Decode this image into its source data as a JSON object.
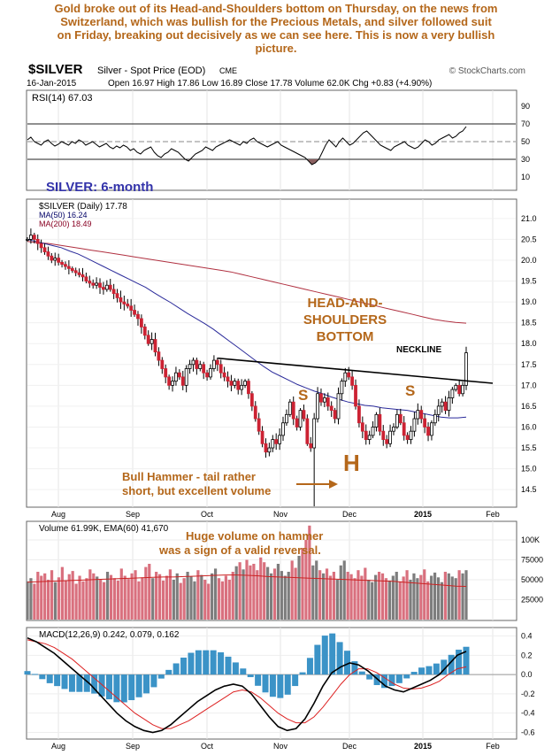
{
  "caption": [
    "Gold broke out of its Head-and-Shoulders bottom on Thursday, on the news from",
    "Switzerland, which was bullish for the Precious Metals, and silver followed suit",
    "on Friday, breaking out decisively as we can see here. This is now a very bullish",
    "picture."
  ],
  "header": {
    "symbol": "$SILVER",
    "description": "Silver - Spot Price (EOD)",
    "exchange": "CME",
    "watermark": "© StockCharts.com",
    "date": "16-Jan-2015",
    "quote": "Open 16.97  High 17.86  Low 16.89  Close 17.78  Volume 62.0K  Chg +0.83 (+4.90%)"
  },
  "chart_data": {
    "type": "candlestick",
    "x_months": [
      "Aug",
      "Sep",
      "Oct",
      "Nov",
      "Dec",
      "2015",
      "Feb"
    ],
    "rsi": {
      "label": "RSI(14) 67.03",
      "ticks": [
        "90",
        "70",
        "50",
        "30",
        "10"
      ],
      "levels": [
        70,
        50,
        30
      ],
      "ylim": [
        0,
        100
      ],
      "values": [
        52,
        55,
        50,
        48,
        46,
        50,
        52,
        48,
        45,
        47,
        50,
        48,
        46,
        50,
        48,
        52,
        50,
        46,
        48,
        50,
        47,
        44,
        46,
        48,
        44,
        42,
        45,
        43,
        46,
        44,
        40,
        42,
        38,
        36,
        40,
        42,
        44,
        38,
        34,
        32,
        36,
        38,
        42,
        40,
        38,
        34,
        30,
        28,
        32,
        36,
        38,
        40,
        44,
        42,
        40,
        44,
        46,
        48,
        50,
        52,
        50,
        48,
        46,
        50,
        48,
        52,
        54,
        50,
        48,
        46,
        44,
        46,
        48,
        50,
        46,
        44,
        42,
        40,
        38,
        36,
        34,
        32,
        28,
        24,
        26,
        30,
        38,
        46,
        52,
        48,
        44,
        50,
        54,
        50,
        46,
        48,
        52,
        56,
        60,
        62,
        58,
        54,
        50,
        46,
        44,
        42,
        40,
        44,
        46,
        48,
        50,
        46,
        44,
        42,
        44,
        48,
        52,
        50,
        46,
        48,
        52,
        54,
        56,
        58,
        54,
        56,
        60,
        62,
        67
      ]
    },
    "price": {
      "label": "$SILVER (Daily) 17.78",
      "ma50_label": "MA(50) 16.24",
      "ma200_label": "MA(200) 18.49",
      "title": "SILVER: 6-month",
      "ticks": [
        21.0,
        20.5,
        20.0,
        19.5,
        19.0,
        18.5,
        18.0,
        17.5,
        17.0,
        16.5,
        16.0,
        15.5,
        15.0,
        14.5
      ],
      "ylim": [
        14.1,
        21.4
      ],
      "close": [
        20.5,
        20.6,
        20.5,
        20.4,
        20.3,
        20.2,
        20.1,
        20.0,
        20.05,
        19.95,
        19.9,
        19.85,
        19.8,
        19.75,
        19.7,
        19.65,
        19.6,
        19.5,
        19.45,
        19.4,
        19.45,
        19.35,
        19.3,
        19.4,
        19.3,
        19.2,
        19.1,
        19.0,
        18.95,
        18.9,
        18.8,
        18.7,
        18.6,
        18.4,
        18.2,
        18.0,
        18.1,
        17.8,
        17.6,
        17.4,
        17.2,
        17.0,
        17.1,
        17.3,
        17.2,
        17.0,
        17.4,
        17.5,
        17.6,
        17.4,
        17.5,
        17.3,
        17.2,
        17.4,
        17.6,
        17.5,
        17.3,
        17.2,
        17.1,
        17.0,
        17.1,
        16.9,
        17.0,
        17.1,
        16.8,
        16.5,
        16.2,
        15.9,
        15.6,
        15.4,
        15.5,
        15.7,
        15.6,
        15.8,
        16.1,
        16.3,
        16.6,
        16.2,
        16.0,
        16.4,
        16.2,
        15.6,
        15.5,
        16.2,
        16.8,
        16.6,
        16.7,
        16.5,
        16.4,
        16.2,
        16.8,
        17.1,
        17.3,
        17.2,
        17.0,
        16.5,
        16.1,
        15.9,
        15.7,
        15.8,
        16.0,
        16.3,
        15.9,
        15.7,
        15.6,
        15.9,
        16.0,
        16.3,
        16.1,
        15.8,
        15.7,
        15.9,
        16.2,
        16.4,
        16.2,
        16.0,
        15.8,
        16.1,
        16.3,
        16.5,
        16.6,
        16.4,
        16.7,
        16.9,
        17.0,
        16.8,
        17.0,
        17.78
      ],
      "ma50": [
        20.5,
        20.45,
        20.4,
        20.35,
        20.3,
        20.22,
        20.15,
        20.05,
        19.95,
        19.85,
        19.75,
        19.65,
        19.55,
        19.45,
        19.35,
        19.22,
        19.1,
        18.98,
        18.85,
        18.72,
        18.6,
        18.48,
        18.35,
        18.2,
        18.05,
        17.9,
        17.75,
        17.6,
        17.45,
        17.32,
        17.22,
        17.12,
        17.02,
        16.94,
        16.86,
        16.8,
        16.72,
        16.66,
        16.6,
        16.56,
        16.52,
        16.5,
        16.46,
        16.44,
        16.42,
        16.4,
        16.36,
        16.32,
        16.28,
        16.24,
        16.22,
        16.22,
        16.24
      ],
      "ma200": [
        20.45,
        20.42,
        20.4,
        20.36,
        20.32,
        20.28,
        20.24,
        20.2,
        20.16,
        20.12,
        20.08,
        20.04,
        20.0,
        19.96,
        19.92,
        19.88,
        19.84,
        19.8,
        19.76,
        19.72,
        19.66,
        19.6,
        19.54,
        19.48,
        19.42,
        19.36,
        19.3,
        19.24,
        19.18,
        19.12,
        19.06,
        19.0,
        18.94,
        18.88,
        18.82,
        18.76,
        18.7,
        18.64,
        18.58,
        18.54,
        18.51,
        18.49
      ],
      "neckline": [
        [
          0.17,
          17.65
        ],
        [
          1.0,
          17.05
        ]
      ],
      "annotations": {
        "hs_title": [
          "HEAD-AND-",
          "SHOULDERS",
          "BOTTOM"
        ],
        "neckline": "NECKLINE",
        "left_shoulder": "S",
        "right_shoulder": "S",
        "head": "H",
        "hammer": [
          "Bull Hammer - tail rather",
          "short, but excellent volume"
        ]
      }
    },
    "volume": {
      "label": "Volume 61.99K, EMA(60) 41,670",
      "note": [
        "Huge volume on hammer",
        "was a sign of a valid reversal."
      ],
      "ticks": [
        "100K",
        "75000",
        "50000",
        "25000"
      ],
      "ylim": [
        0,
        120000
      ],
      "values": [
        48000,
        52000,
        45000,
        60000,
        55000,
        58000,
        50000,
        62000,
        47000,
        53000,
        66000,
        49000,
        57000,
        61000,
        45000,
        55000,
        48000,
        52000,
        63000,
        58000,
        54000,
        50000,
        47000,
        60000,
        56000,
        52000,
        49000,
        64000,
        55000,
        51000,
        58000,
        62000,
        48000,
        53000,
        66000,
        70000,
        52000,
        60000,
        57000,
        49000,
        55000,
        63000,
        50000,
        58000,
        46000,
        52000,
        60000,
        54000,
        48000,
        62000,
        56000,
        50000,
        45000,
        58000,
        64000,
        52000,
        48000,
        55000,
        50000,
        60000,
        67000,
        72000,
        63000,
        75000,
        68000,
        70000,
        62000,
        78000,
        72000,
        66000,
        58000,
        64000,
        70000,
        61000,
        55000,
        60000,
        74000,
        65000,
        80000,
        90000,
        100000,
        118000,
        68000,
        74000,
        62000,
        58000,
        64000,
        55000,
        60000,
        50000,
        68000,
        74000,
        60000,
        57000,
        52000,
        62000,
        55000,
        65000,
        50000,
        47000,
        56000,
        60000,
        58000,
        52000,
        49000,
        55000,
        60000,
        48000,
        54000,
        62000,
        50000,
        58000,
        52000,
        56000,
        63000,
        48000,
        55000,
        59000,
        53000,
        47000,
        60000,
        58000,
        54000,
        52000,
        62000,
        58000,
        61990
      ],
      "ema": [
        47000,
        47500,
        48000,
        48500,
        49000,
        49500,
        50000,
        50500,
        51000,
        51500,
        52000,
        52500,
        53000,
        53500,
        53500,
        54000,
        54500,
        55000,
        55500,
        56000,
        56000,
        55500,
        55000,
        54000,
        53500,
        53000,
        52500,
        52000,
        51500,
        51000,
        50500,
        50000,
        49500,
        49000,
        48500,
        48000,
        47000,
        46000,
        45000,
        44000,
        43000,
        42000,
        41670
      ]
    },
    "macd": {
      "label": "MACD(12,26,9) 0.242, 0.079, 0.162",
      "ticks": [
        "0.4",
        "0.2",
        "0.0",
        "-0.2",
        "-0.4",
        "-0.6"
      ],
      "ylim": [
        -0.66,
        0.46
      ],
      "macd": [
        0.38,
        0.34,
        0.28,
        0.22,
        0.14,
        0.06,
        -0.02,
        -0.1,
        -0.2,
        -0.3,
        -0.4,
        -0.48,
        -0.54,
        -0.58,
        -0.6,
        -0.58,
        -0.52,
        -0.44,
        -0.36,
        -0.28,
        -0.22,
        -0.16,
        -0.12,
        -0.1,
        -0.12,
        -0.2,
        -0.32,
        -0.44,
        -0.54,
        -0.58,
        -0.56,
        -0.46,
        -0.3,
        -0.12,
        0.02,
        0.08,
        0.12,
        0.1,
        0.04,
        -0.04,
        -0.12,
        -0.16,
        -0.18,
        -0.14,
        -0.1,
        -0.06,
        0.0,
        0.1,
        0.2,
        0.24
      ],
      "signal": [
        0.36,
        0.34,
        0.32,
        0.28,
        0.22,
        0.16,
        0.08,
        0.0,
        -0.08,
        -0.16,
        -0.24,
        -0.32,
        -0.4,
        -0.46,
        -0.52,
        -0.56,
        -0.56,
        -0.52,
        -0.48,
        -0.42,
        -0.36,
        -0.3,
        -0.24,
        -0.18,
        -0.16,
        -0.18,
        -0.24,
        -0.32,
        -0.4,
        -0.46,
        -0.5,
        -0.5,
        -0.44,
        -0.34,
        -0.22,
        -0.1,
        0.0,
        0.06,
        0.06,
        0.02,
        -0.04,
        -0.1,
        -0.14,
        -0.15,
        -0.14,
        -0.11,
        -0.07,
        0.0,
        0.06,
        0.08
      ]
    }
  }
}
